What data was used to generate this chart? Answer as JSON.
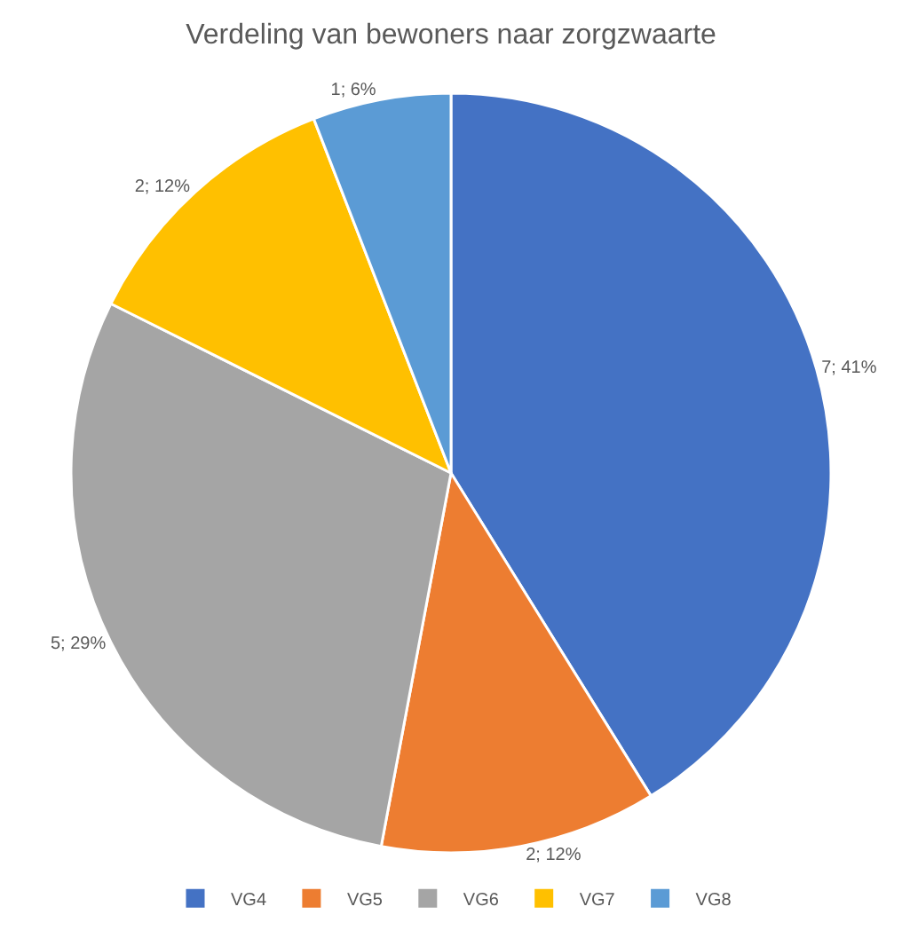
{
  "chart_data": {
    "type": "pie",
    "title": "Verdeling van bewoners naar zorgzwaarte",
    "categories": [
      "VG4",
      "VG5",
      "VG6",
      "VG7",
      "VG8"
    ],
    "values": [
      7,
      2,
      5,
      2,
      1
    ],
    "value_labels": [
      "7; 41%",
      "2; 12%",
      "5; 29%",
      "2; 12%",
      "1; 6%"
    ],
    "colors": [
      "#4472c4",
      "#ed7d31",
      "#a5a5a5",
      "#ffc000",
      "#5b9bd5"
    ],
    "legend": "bottom"
  }
}
